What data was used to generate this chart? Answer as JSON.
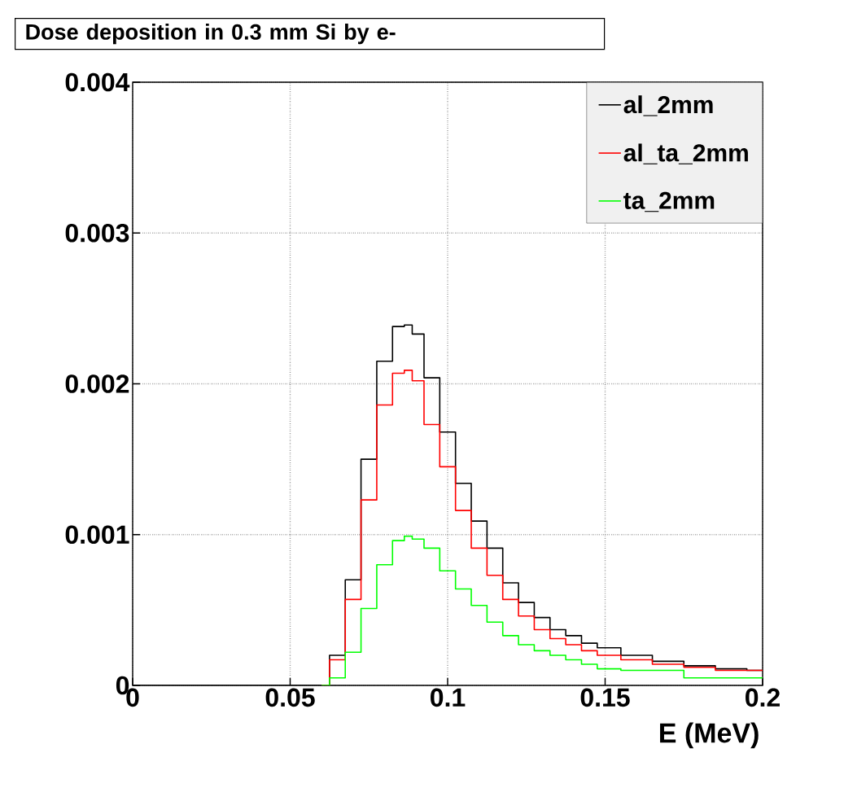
{
  "chart_data": {
    "type": "step",
    "title": "Dose deposition in 0.3 mm Si by e-",
    "xlabel": "E (MeV)",
    "x": [
      0,
      0.055,
      0.06,
      0.065,
      0.07,
      0.075,
      0.08,
      0.085,
      0.0875,
      0.09,
      0.095,
      0.1,
      0.105,
      0.11,
      0.115,
      0.12,
      0.125,
      0.13,
      0.135,
      0.14,
      0.145,
      0.15,
      0.16,
      0.17,
      0.18,
      0.19,
      0.2
    ],
    "series": [
      {
        "name": "al_2mm",
        "color": "#000000",
        "values": [
          0,
          0,
          0,
          0.0002,
          0.0007,
          0.0015,
          0.00215,
          0.00238,
          0.00239,
          0.00233,
          0.00204,
          0.00168,
          0.00134,
          0.00109,
          0.00091,
          0.00068,
          0.00055,
          0.00045,
          0.00037,
          0.00033,
          0.00028,
          0.00025,
          0.0002,
          0.00016,
          0.00013,
          0.00011,
          0.0001
        ]
      },
      {
        "name": "al_ta_2mm",
        "color": "#ff0000",
        "values": [
          null,
          null,
          0,
          0.00017,
          0.00057,
          0.00123,
          0.00186,
          0.00207,
          0.00209,
          0.00202,
          0.00173,
          0.00145,
          0.00116,
          0.00091,
          0.00073,
          0.00057,
          0.00046,
          0.00037,
          0.00031,
          0.00027,
          0.00023,
          0.0002,
          0.00017,
          0.00014,
          0.00012,
          0.0001,
          0.0001
        ]
      },
      {
        "name": "ta_2mm",
        "color": "#00ff00",
        "values": [
          null,
          null,
          0,
          5e-05,
          0.00022,
          0.00051,
          0.0008,
          0.00096,
          0.00099,
          0.00097,
          0.00091,
          0.00076,
          0.00064,
          0.00053,
          0.00042,
          0.00033,
          0.00027,
          0.00023,
          0.0002,
          0.00017,
          0.00014,
          0.00011,
          0.0001,
          0.0001,
          5e-05,
          5e-05,
          5e-05
        ]
      }
    ],
    "xlim": [
      0,
      0.2
    ],
    "ylim": [
      0,
      0.004
    ],
    "xticks": [
      0,
      0.05,
      0.1,
      0.15,
      0.2
    ],
    "yticks": [
      0,
      0.001,
      0.002,
      0.003,
      0.004
    ],
    "grid": true,
    "legend": "top right"
  }
}
